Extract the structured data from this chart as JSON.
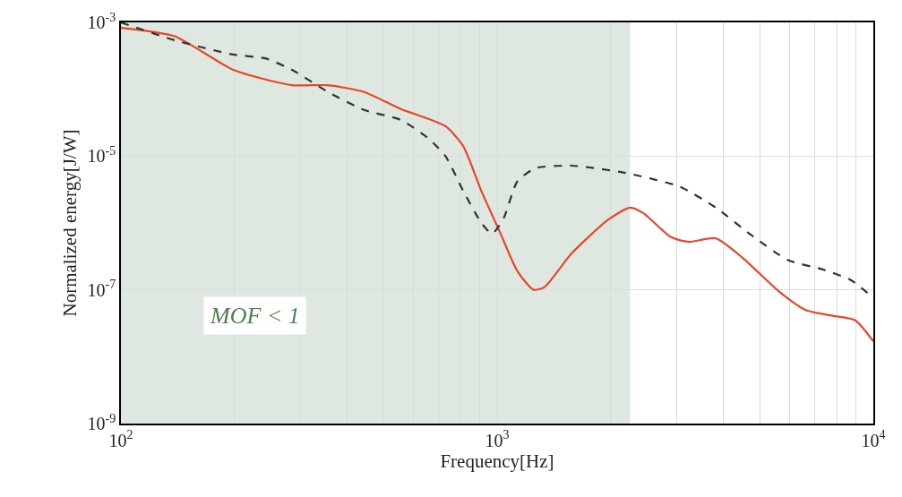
{
  "chart_data": {
    "type": "line",
    "xlabel": "Frequency[Hz]",
    "ylabel": "Normalized energy[J/W]",
    "log": "xy",
    "grid": true,
    "xlim": [
      100,
      10000
    ],
    "ylim": [
      1e-09,
      0.001
    ],
    "xticks": [
      {
        "value": 100,
        "label": "10$^{2}$"
      },
      {
        "value": 200,
        "label": null
      },
      {
        "value": 300,
        "label": null
      },
      {
        "value": 400,
        "label": null
      },
      {
        "value": 500,
        "label": null
      },
      {
        "value": 600,
        "label": null
      },
      {
        "value": 700,
        "label": null
      },
      {
        "value": 800,
        "label": null
      },
      {
        "value": 900,
        "label": null
      },
      {
        "value": 1000,
        "label": "10$^{3}$"
      },
      {
        "value": 2000,
        "label": null
      },
      {
        "value": 3000,
        "label": null
      },
      {
        "value": 4000,
        "label": null
      },
      {
        "value": 5000,
        "label": null
      },
      {
        "value": 6000,
        "label": null
      },
      {
        "value": 7000,
        "label": null
      },
      {
        "value": 8000,
        "label": null
      },
      {
        "value": 9000,
        "label": null
      },
      {
        "value": 10000,
        "label": "10$^{4}$"
      }
    ],
    "yticks": [
      {
        "value": 1e-09,
        "label": "10$^{-9}$"
      },
      {
        "value": 1e-07,
        "label": "10$^{-7}$"
      },
      {
        "value": 1e-05,
        "label": "10$^{-5}$"
      },
      {
        "value": 0.001,
        "label": "10$^{-3}$"
      }
    ],
    "series": [
      {
        "color": "#e8452c",
        "line_style": "solid",
        "x": [
          100,
          139,
          199,
          285,
          355,
          443,
          553,
          729,
          813,
          908,
          1014,
          1132,
          1250,
          1336,
          1577,
          1965,
          2255,
          2449,
          2891,
          3228,
          3811,
          4498,
          5608,
          6607,
          7798,
          8954,
          10000
        ],
        "values": [
          0.00083,
          0.00062,
          0.000195,
          0.000115,
          0.000115,
          9.1e-05,
          5.1e-05,
          2.8e-05,
          1.4e-05,
          3e-06,
          7.6e-07,
          1.9e-07,
          1e-07,
          1.1e-07,
          3.5e-07,
          1.1e-06,
          1.7e-06,
          1.4e-06,
          6.2e-07,
          5.2e-07,
          5.9e-07,
          3e-07,
          9.5e-08,
          5e-08,
          4.1e-08,
          3.5e-08,
          1.7e-08
        ]
      },
      {
        "color": "#333333",
        "line_style": "dashed",
        "x": [
          100,
          139,
          199,
          242,
          285,
          355,
          443,
          553,
          652,
          729,
          813,
          908,
          970,
          1042,
          1132,
          1265,
          1577,
          2193,
          3055,
          3811,
          4753,
          5919,
          7379,
          8710,
          10000
        ],
        "values": [
          0.001,
          0.00054,
          0.00033,
          0.00029,
          0.000195,
          9.1e-05,
          4.9e-05,
          3.5e-05,
          1.9e-05,
          1e-05,
          3e-06,
          1e-06,
          6.9e-07,
          1.2e-06,
          4.2e-06,
          6.6e-06,
          7.2e-06,
          5.6e-06,
          3.5e-06,
          1.7e-06,
          6.5e-07,
          2.8e-07,
          2e-07,
          1.4e-07,
          7.6e-08
        ]
      }
    ],
    "bands": [
      {
        "axis": "x",
        "from": 100,
        "to": 2255,
        "label": "MOF < 1",
        "color": "#dfe8e0"
      }
    ]
  }
}
